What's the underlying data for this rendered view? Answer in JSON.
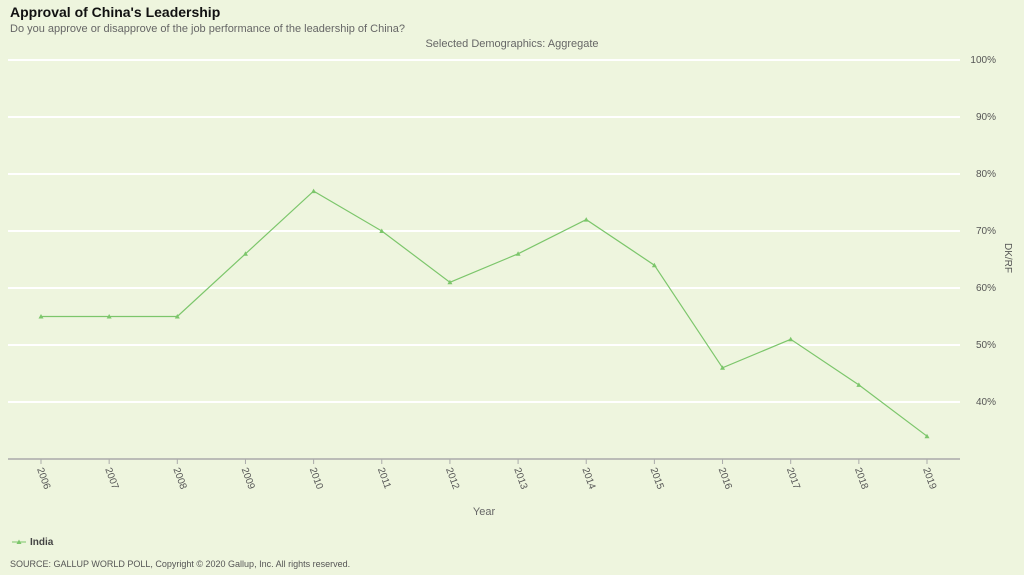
{
  "chart_data": {
    "type": "line",
    "title": "Approval of China's Leadership",
    "subtitle": "Do you approve or disapprove of the job performance of the leadership of China?",
    "annotation": "Selected Demographics: Aggregate",
    "x_label": "Year",
    "y_label": "DK/RF",
    "source": "SOURCE: GALLUP WORLD POLL, Copyright © 2020 Gallup, Inc. All rights reserved.",
    "categories": [
      "2006",
      "2007",
      "2008",
      "2009",
      "2010",
      "2011",
      "2012",
      "2013",
      "2014",
      "2015",
      "2016",
      "2017",
      "2018",
      "2019"
    ],
    "series": [
      {
        "name": "India",
        "color": "#7cc66b",
        "values": [
          55,
          55,
          55,
          66,
          77,
          70,
          61,
          66,
          72,
          64,
          46,
          51,
          43,
          34
        ]
      }
    ],
    "ylim": [
      30,
      100
    ],
    "yticks": [
      {
        "value": 40,
        "label": "40%"
      },
      {
        "value": 50,
        "label": "50%"
      },
      {
        "value": 60,
        "label": "60%"
      },
      {
        "value": 70,
        "label": "70%"
      },
      {
        "value": 80,
        "label": "80%"
      },
      {
        "value": 90,
        "label": "90%"
      },
      {
        "value": 100,
        "label": "100%"
      }
    ],
    "grid": true
  }
}
